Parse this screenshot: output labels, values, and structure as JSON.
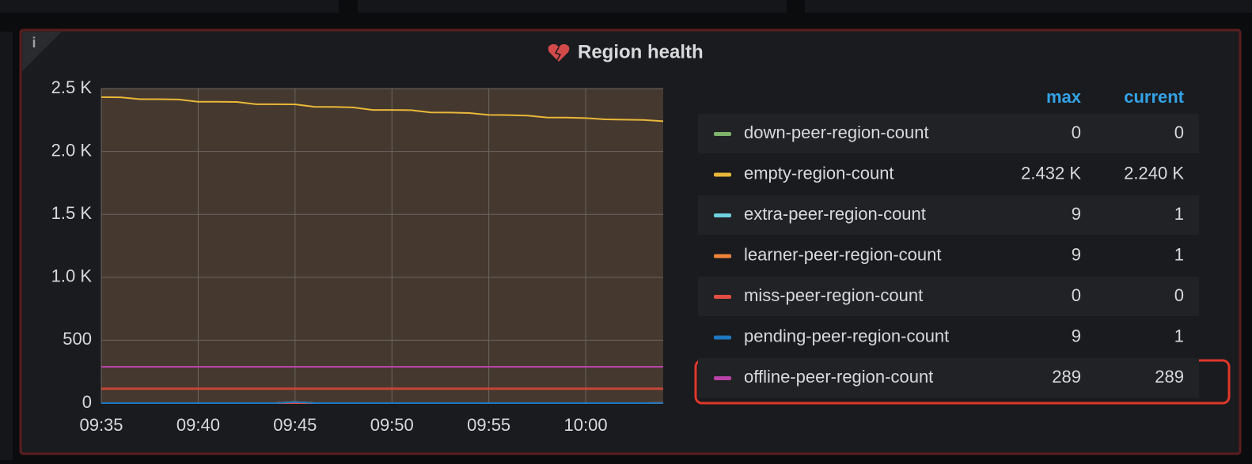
{
  "chart_data": {
    "type": "line",
    "title": "Region health",
    "x": [
      "09:35",
      "09:36",
      "09:37",
      "09:38",
      "09:39",
      "09:40",
      "09:41",
      "09:42",
      "09:43",
      "09:44",
      "09:45",
      "09:46",
      "09:47",
      "09:48",
      "09:49",
      "09:50",
      "09:51",
      "09:52",
      "09:53",
      "09:54",
      "09:55",
      "09:56",
      "09:57",
      "09:58",
      "09:59",
      "10:00",
      "10:01",
      "10:02",
      "10:03",
      "10:04"
    ],
    "xlim": [
      "09:35",
      "10:04"
    ],
    "xticks": [
      "09:35",
      "09:40",
      "09:45",
      "09:50",
      "09:55",
      "10:00"
    ],
    "ylim": [
      0,
      2500
    ],
    "yticks": [
      0,
      500,
      {
        "value": 1000,
        "label": "1.0 K"
      },
      {
        "value": 1500,
        "label": "1.5 K"
      },
      {
        "value": 2000,
        "label": "2.0 K"
      },
      {
        "value": 2500,
        "label": "2.5 K"
      }
    ],
    "grid": true,
    "threshold": 115,
    "threshold_color": "#c4463a",
    "legend_columns": [
      "max",
      "current"
    ],
    "series": [
      {
        "name": "down-peer-region-count",
        "color": "#7eb26d",
        "max": 0,
        "current": 0,
        "values": [
          0,
          0,
          0,
          0,
          0,
          0,
          0,
          0,
          0,
          0,
          0,
          0,
          0,
          0,
          0,
          0,
          0,
          0,
          0,
          0,
          0,
          0,
          0,
          0,
          0,
          0,
          0,
          0,
          0,
          0
        ]
      },
      {
        "name": "empty-region-count",
        "color": "#eab839",
        "max": 2432,
        "current": 2240,
        "max_label": "2.432 K",
        "current_label": "2.240 K",
        "values": [
          2432,
          2430,
          2415,
          2415,
          2413,
          2395,
          2395,
          2393,
          2375,
          2375,
          2374,
          2355,
          2354,
          2350,
          2330,
          2330,
          2328,
          2310,
          2309,
          2305,
          2290,
          2289,
          2285,
          2270,
          2269,
          2265,
          2255,
          2253,
          2250,
          2240
        ]
      },
      {
        "name": "extra-peer-region-count",
        "color": "#6ed0e0",
        "max": 9,
        "current": 1,
        "values": [
          0,
          0,
          0,
          0,
          0,
          0,
          0,
          0,
          0,
          0,
          9,
          0,
          0,
          0,
          0,
          0,
          0,
          0,
          0,
          0,
          0,
          0,
          0,
          0,
          0,
          0,
          0,
          0,
          0,
          1
        ]
      },
      {
        "name": "learner-peer-region-count",
        "color": "#ef843c",
        "max": 9,
        "current": 1,
        "values": [
          0,
          0,
          0,
          0,
          0,
          0,
          0,
          0,
          0,
          0,
          9,
          0,
          0,
          0,
          0,
          0,
          0,
          0,
          0,
          0,
          0,
          0,
          0,
          0,
          0,
          0,
          0,
          0,
          0,
          1
        ]
      },
      {
        "name": "miss-peer-region-count",
        "color": "#e24d42",
        "max": 0,
        "current": 0,
        "values": [
          0,
          0,
          0,
          0,
          0,
          0,
          0,
          0,
          0,
          0,
          0,
          0,
          0,
          0,
          0,
          0,
          0,
          0,
          0,
          0,
          0,
          0,
          0,
          0,
          0,
          0,
          0,
          0,
          0,
          0
        ]
      },
      {
        "name": "pending-peer-region-count",
        "color": "#1f78c1",
        "max": 9,
        "current": 1,
        "values": [
          0,
          0,
          0,
          0,
          0,
          0,
          0,
          0,
          0,
          0,
          9,
          0,
          0,
          0,
          0,
          0,
          0,
          0,
          0,
          0,
          0,
          0,
          0,
          0,
          0,
          0,
          0,
          0,
          0,
          1
        ]
      },
      {
        "name": "offline-peer-region-count",
        "color": "#ba43a9",
        "max": 289,
        "current": 289,
        "values": [
          289,
          289,
          289,
          289,
          289,
          289,
          289,
          289,
          289,
          289,
          289,
          289,
          289,
          289,
          289,
          289,
          289,
          289,
          289,
          289,
          289,
          289,
          289,
          289,
          289,
          289,
          289,
          289,
          289,
          289
        ]
      }
    ]
  }
}
